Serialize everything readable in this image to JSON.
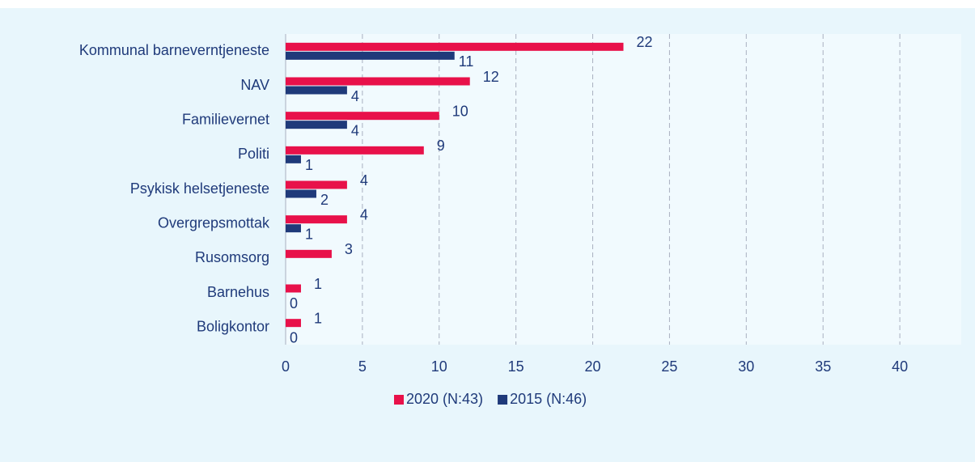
{
  "chart_data": {
    "type": "bar",
    "orientation": "horizontal",
    "categories": [
      "Kommunal barneverntjeneste",
      "NAV",
      "Familievernet",
      "Politi",
      "Psykisk helsetjeneste",
      "Overgrepsmottak",
      "Rusomsorg",
      "Barnehus",
      "Boligkontor"
    ],
    "series": [
      {
        "name": "2020 (N:43)",
        "color": "#e8114a",
        "values": [
          22,
          12,
          10,
          9,
          4,
          4,
          3,
          1,
          1
        ]
      },
      {
        "name": "2015 (N:46)",
        "color": "#1f3a7a",
        "values": [
          11,
          4,
          4,
          1,
          2,
          1,
          null,
          0,
          0
        ]
      }
    ],
    "xlim": [
      0,
      44
    ],
    "xticks": [
      0,
      5,
      10,
      15,
      20,
      25,
      30,
      35,
      40
    ],
    "grid": true,
    "legend": "bottom"
  }
}
